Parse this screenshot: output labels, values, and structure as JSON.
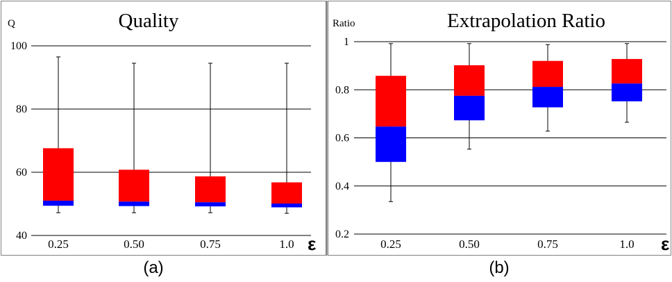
{
  "colors": {
    "upper_box": "#ff0000",
    "lower_box": "#0000ff",
    "axis": "#000000",
    "grid": "#000000",
    "frame": "#808080"
  },
  "chart_data": [
    {
      "type": "box",
      "title": "Quality",
      "ylabel": "Q",
      "xlabel": "ε",
      "caption": "(a)",
      "grid": true,
      "ylim": [
        40,
        100
      ],
      "yticks": [
        "40",
        "60",
        "80",
        "100"
      ],
      "categories": [
        "0.25",
        "0.50",
        "0.75",
        "1.0"
      ],
      "boxes": [
        {
          "whisker_low": 47.2,
          "q1": 49.4,
          "median": 51.0,
          "q3": 67.6,
          "whisker_high": 96.5
        },
        {
          "whisker_low": 47.2,
          "q1": 49.3,
          "median": 50.7,
          "q3": 60.8,
          "whisker_high": 94.5
        },
        {
          "whisker_low": 47.2,
          "q1": 49.2,
          "median": 50.5,
          "q3": 58.7,
          "whisker_high": 94.5
        },
        {
          "whisker_low": 47.0,
          "q1": 48.9,
          "median": 50.1,
          "q3": 56.8,
          "whisker_high": 94.5
        }
      ]
    },
    {
      "type": "box",
      "title": "Extrapolation Ratio",
      "ylabel": "Ratio",
      "xlabel": "ε",
      "caption": "(b)",
      "grid": true,
      "ylim": [
        0.2,
        1.0
      ],
      "yticks": [
        "0.2",
        "0.4",
        "0.6",
        "0.8",
        "1"
      ],
      "categories": [
        "0.25",
        "0.50",
        "0.75",
        "1.0"
      ],
      "boxes": [
        {
          "whisker_low": 0.335,
          "q1": 0.5,
          "median": 0.647,
          "q3": 0.858,
          "whisker_high": 0.992
        },
        {
          "whisker_low": 0.553,
          "q1": 0.673,
          "median": 0.775,
          "q3": 0.902,
          "whisker_high": 0.992
        },
        {
          "whisker_low": 0.628,
          "q1": 0.727,
          "median": 0.812,
          "q3": 0.92,
          "whisker_high": 0.988
        },
        {
          "whisker_low": 0.665,
          "q1": 0.752,
          "median": 0.826,
          "q3": 0.928,
          "whisker_high": 0.992
        }
      ]
    }
  ]
}
